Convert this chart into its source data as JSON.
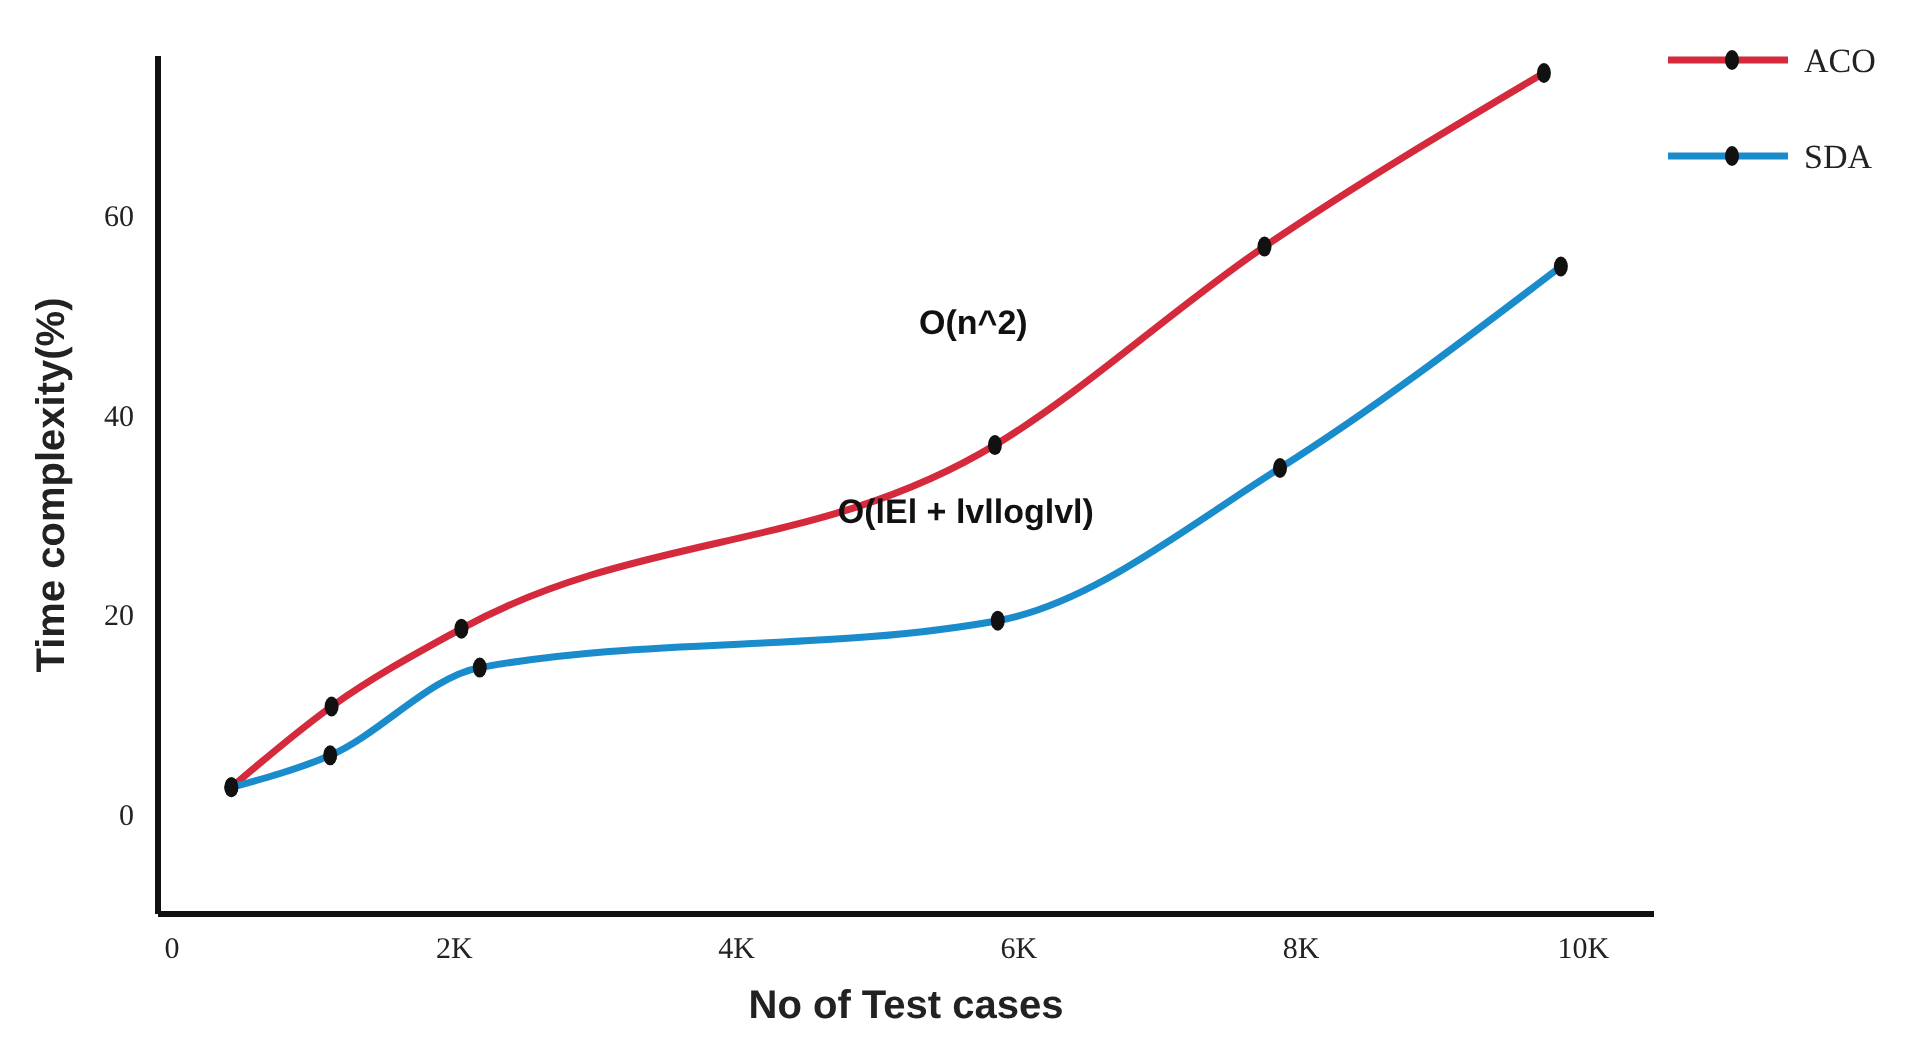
{
  "chart_data": {
    "type": "line",
    "xlabel": "No of Test cases",
    "ylabel": "Time complexity(%)",
    "xlim": [
      -100,
      10500
    ],
    "ylim": [
      -10,
      76
    ],
    "xticks": [
      {
        "value": 0,
        "label": "0"
      },
      {
        "value": 2000,
        "label": "2K"
      },
      {
        "value": 4000,
        "label": "4K"
      },
      {
        "value": 6000,
        "label": "6K"
      },
      {
        "value": 8000,
        "label": "8K"
      },
      {
        "value": 10000,
        "label": "10K"
      }
    ],
    "yticks": [
      0,
      20,
      40,
      60
    ],
    "series": [
      {
        "name": "ACO",
        "color": "#d42a3c",
        "x": [
          420,
          1130,
          2050,
          5830,
          7740,
          9720
        ],
        "values": [
          2.7,
          10.8,
          18.6,
          37,
          56.9,
          74.3
        ]
      },
      {
        "name": "SDA",
        "color": "#1a8ccc",
        "x": [
          420,
          1120,
          2180,
          5850,
          7850,
          9840
        ],
        "values": [
          2.7,
          5.9,
          14.7,
          19.4,
          34.7,
          54.9
        ]
      }
    ],
    "annotations": [
      "O(n^2)",
      "O(lEl + lvlloglvl)"
    ],
    "marker": "circle",
    "line_style": "solid",
    "grid": false,
    "legend": "top right"
  }
}
